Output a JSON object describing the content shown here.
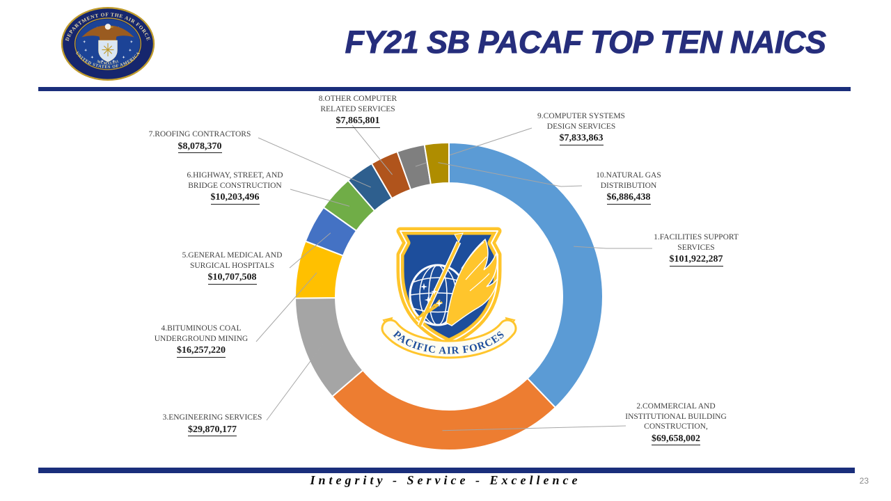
{
  "slide": {
    "title": "FY21 SB PACAF TOP TEN NAICS",
    "motto": "Integrity - Service - Excellence",
    "page_number": "23",
    "accent_navy": "#1A2E7B",
    "title_color": "#262E7C"
  },
  "daf_seal": {
    "top_text": "DEPARTMENT OF THE AIR FORCE",
    "bottom_text": "UNITED STATES OF AMERICA",
    "year_text": "MCMXLVII"
  },
  "pacaf_emblem": {
    "banner_text": "PACIFIC AIR FORCES"
  },
  "chart_data": {
    "type": "pie",
    "subtype": "donut",
    "title": "FY21 SB PACAF TOP TEN NAICS",
    "legend_position": "none",
    "direction": "clockwise",
    "start_angle_deg": 0,
    "total": 269283162,
    "categories": [
      "1.FACILITIES SUPPORT SERVICES",
      "2.COMMERCIAL AND INSTITUTIONAL BUILDING CONSTRUCTION,",
      "3.ENGINEERING SERVICES",
      "4.BITUMINOUS COAL UNDERGROUND MINING",
      "5.GENERAL MEDICAL AND SURGICAL HOSPITALS",
      "6.HIGHWAY, STREET, AND BRIDGE CONSTRUCTION",
      "7.ROOFING CONTRACTORS",
      "8.OTHER COMPUTER RELATED SERVICES",
      "9.COMPUTER SYSTEMS DESIGN SERVICES",
      "10.NATURAL GAS DISTRIBUTION"
    ],
    "values": [
      101922287,
      69658002,
      29870177,
      16257220,
      10707508,
      10203496,
      8078370,
      7865801,
      7833863,
      6886438
    ],
    "value_labels": [
      "$101,922,287",
      "$69,658,002",
      "$29,870,177",
      "$16,257,220",
      "$10,707,508",
      "$10,203,496",
      "$8,078,370",
      "$7,865,801",
      "$7,833,863",
      "$6,886,438"
    ],
    "colors": [
      "#5B9BD5",
      "#ED7D31",
      "#A5A5A5",
      "#FFC000",
      "#4472C4",
      "#70AD47",
      "#2E5F8E",
      "#B0541C",
      "#7F7F7F",
      "#AF8D00"
    ]
  }
}
